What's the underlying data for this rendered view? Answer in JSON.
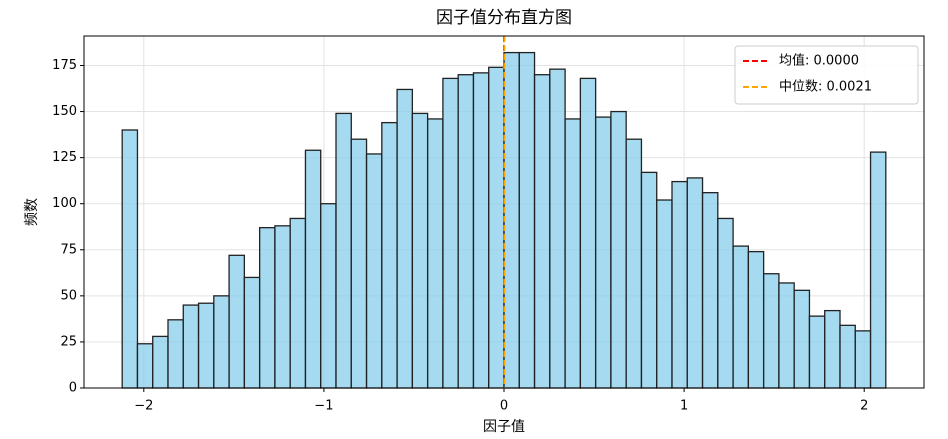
{
  "chart_data": {
    "type": "histogram",
    "title": "因子值分布直方图",
    "x_label": "因子值",
    "y_label": "频数",
    "bins": [
      -2.12,
      -2.0352,
      -1.9504,
      -1.8656,
      -1.7808,
      -1.696,
      -1.6112,
      -1.5264,
      -1.4416,
      -1.3568,
      -1.272,
      -1.1872,
      -1.1024,
      -1.0176,
      -0.9328,
      -0.848,
      -0.7632,
      -0.6784,
      -0.5936,
      -0.5088,
      -0.424,
      -0.3392,
      -0.2544,
      -0.1696,
      -0.0848,
      0,
      0.0848,
      0.1696,
      0.2544,
      0.3392,
      0.424,
      0.5088,
      0.5936,
      0.6784,
      0.7632,
      0.848,
      0.9328,
      1.0176,
      1.1024,
      1.1872,
      1.272,
      1.3568,
      1.4416,
      1.5264,
      1.6112,
      1.696,
      1.7808,
      1.8656,
      1.9504,
      2.0352,
      2.12
    ],
    "values": [
      140,
      24,
      28,
      37,
      45,
      46,
      50,
      72,
      60,
      87,
      88,
      92,
      129,
      100,
      149,
      135,
      127,
      144,
      162,
      149,
      146,
      168,
      170,
      171,
      174,
      182,
      182,
      170,
      173,
      146,
      168,
      147,
      150,
      135,
      117,
      102,
      112,
      114,
      106,
      92,
      77,
      74,
      62,
      57,
      53,
      39,
      42,
      34,
      31,
      128
    ],
    "color": "#87ceeb",
    "edge_color": "#222222",
    "xlim": [
      -2.332,
      2.332
    ],
    "ylim": [
      0,
      191
    ],
    "xticks": [
      {
        "value": -2,
        "label": "−2"
      },
      {
        "value": -1,
        "label": "−1"
      },
      0,
      1,
      2
    ],
    "yticks": [
      0,
      25,
      50,
      75,
      100,
      125,
      150,
      175
    ],
    "grid": true,
    "legend": "upper right",
    "lines": [
      {
        "name": "均值: 0.0000",
        "value": 0.0,
        "color": "#ff0000"
      },
      {
        "name": "中位数: 0.0021",
        "value": 0.0021,
        "color": "#ffa500"
      }
    ]
  }
}
